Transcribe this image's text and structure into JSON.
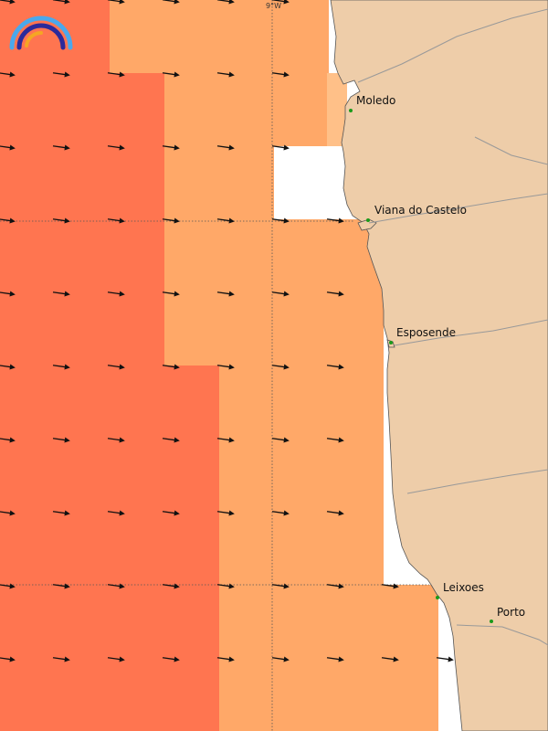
{
  "map": {
    "longitude_label": "9°W",
    "cities": [
      {
        "name": "Moledo"
      },
      {
        "name": "Viana do Castelo"
      },
      {
        "name": "Esposende"
      },
      {
        "name": "Leixoes"
      },
      {
        "name": "Porto"
      }
    ],
    "colors": {
      "sea_high": "#ff7550",
      "sea_mid": "#ffa868",
      "sea_low": "#ffc088",
      "land": "#eecda9",
      "city_dot": "#1a9a1a",
      "logo_outer": "#4aa8ec",
      "logo_middle": "#2c2a9a",
      "logo_inner": "#f5a623"
    },
    "legend_symbol": "wind-direction-arrows",
    "logo": "rainbow-logo-icon"
  }
}
